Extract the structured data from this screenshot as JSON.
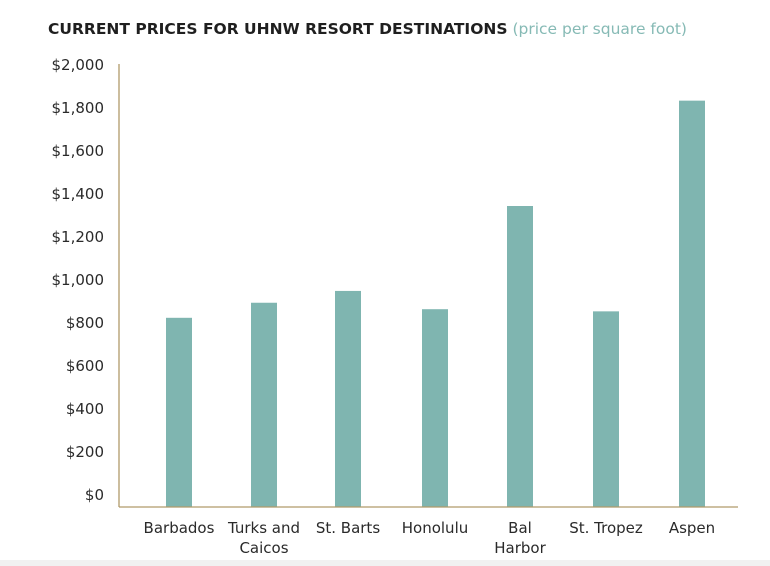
{
  "chart_data": {
    "type": "bar",
    "title": "CURRENT PRICES FOR UHNW RESORT DESTINATIONS",
    "subtitle": "(price per square foot)",
    "xlabel": "",
    "ylabel": "",
    "categories": [
      "Barbados",
      "Turks and Caicos",
      "St. Barts",
      "Honolulu",
      "Bal Harbor",
      "St. Tropez",
      "Aspen"
    ],
    "category_lines": [
      [
        "Barbados"
      ],
      [
        "Turks and",
        "Caicos"
      ],
      [
        "St. Barts"
      ],
      [
        "Honolulu"
      ],
      [
        "Bal",
        "Harbor"
      ],
      [
        "St. Tropez"
      ],
      [
        "Aspen"
      ]
    ],
    "values": [
      880,
      950,
      1005,
      920,
      1400,
      910,
      1890
    ],
    "ylim": [
      0,
      2000
    ],
    "yticks": [
      0,
      200,
      400,
      600,
      800,
      1000,
      1200,
      1400,
      1600,
      1800,
      2000
    ],
    "ytick_labels": [
      "$0",
      "$200",
      "$400",
      "$600",
      "$800",
      "$1,000",
      "$1,200",
      "$1,400",
      "$1,600",
      "$1,800",
      "$2,000"
    ],
    "grid": false,
    "legend": "none",
    "colors": {
      "bar": "#7fb5b0",
      "axis": "#b09a6a",
      "subtitle": "#86bab5",
      "text": "#1f1f1f"
    }
  }
}
